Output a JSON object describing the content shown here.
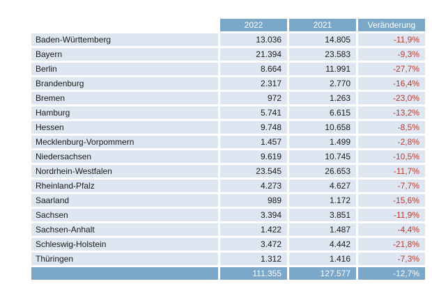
{
  "headers": {
    "y2022": "2022",
    "y2021": "2021",
    "change": "Veränderung"
  },
  "rows": [
    {
      "name": "Baden-Württemberg",
      "y2022": "13.036",
      "y2021": "14.805",
      "change": "-11,9%"
    },
    {
      "name": "Bayern",
      "y2022": "21.394",
      "y2021": "23.583",
      "change": "-9,3%"
    },
    {
      "name": "Berlin",
      "y2022": "8.664",
      "y2021": "11.991",
      "change": "-27,7%"
    },
    {
      "name": "Brandenburg",
      "y2022": "2.317",
      "y2021": "2.770",
      "change": "-16,4%"
    },
    {
      "name": "Bremen",
      "y2022": "972",
      "y2021": "1.263",
      "change": "-23,0%"
    },
    {
      "name": "Hamburg",
      "y2022": "5.741",
      "y2021": "6.615",
      "change": "-13,2%"
    },
    {
      "name": "Hessen",
      "y2022": "9.748",
      "y2021": "10.658",
      "change": "-8,5%"
    },
    {
      "name": "Mecklenburg-Vorpommern",
      "y2022": "1.457",
      "y2021": "1.499",
      "change": "-2,8%"
    },
    {
      "name": "Niedersachsen",
      "y2022": "9.619",
      "y2021": "10.745",
      "change": "-10,5%"
    },
    {
      "name": "Nordrhein-Westfalen",
      "y2022": "23.545",
      "y2021": "26.653",
      "change": "-11,7%"
    },
    {
      "name": "Rheinland-Pfalz",
      "y2022": "4.273",
      "y2021": "4.627",
      "change": "-7,7%"
    },
    {
      "name": "Saarland",
      "y2022": "989",
      "y2021": "1.172",
      "change": "-15,6%"
    },
    {
      "name": "Sachsen",
      "y2022": "3.394",
      "y2021": "3.851",
      "change": "-11,9%"
    },
    {
      "name": "Sachsen-Anhalt",
      "y2022": "1.422",
      "y2021": "1.487",
      "change": "-4,4%"
    },
    {
      "name": "Schleswig-Holstein",
      "y2022": "3.472",
      "y2021": "4.442",
      "change": "-21,8%"
    },
    {
      "name": "Thüringen",
      "y2022": "1.312",
      "y2021": "1.416",
      "change": "-7,3%"
    }
  ],
  "total": {
    "y2022": "111.355",
    "y2021": "127.577",
    "change": "-12,7%"
  },
  "colors": {
    "header_bg": "#7ba7c8",
    "row_bg": "#dde6f1",
    "negative": "#c0392b"
  }
}
